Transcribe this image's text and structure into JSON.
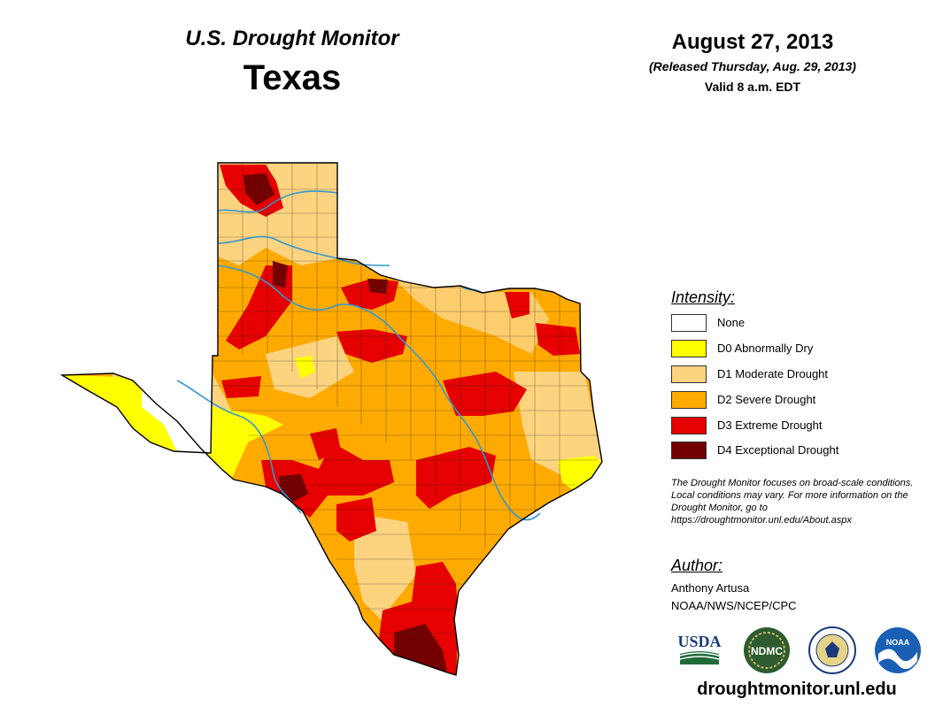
{
  "header": {
    "subtitle": "U.S. Drought Monitor",
    "title": "Texas",
    "date": "August 27, 2013",
    "released": "(Released Thursday, Aug. 29, 2013)",
    "valid": "Valid 8 a.m. EDT"
  },
  "legend": {
    "heading": "Intensity:",
    "items": [
      {
        "label": "None",
        "color": "#ffffff"
      },
      {
        "label": "D0 Abnormally Dry",
        "color": "#ffff00"
      },
      {
        "label": "D1 Moderate Drought",
        "color": "#fcd37f"
      },
      {
        "label": "D2 Severe Drought",
        "color": "#ffaa00"
      },
      {
        "label": "D3 Extreme Drought",
        "color": "#e60000"
      },
      {
        "label": "D4 Exceptional Drought",
        "color": "#730000"
      }
    ]
  },
  "note": {
    "line1": "The Drought Monitor focuses on broad-scale conditions. Local conditions may vary. For more information on the Drought Monitor, go to",
    "url": "https://droughtmonitor.unl.edu/About.aspx"
  },
  "author": {
    "heading": "Author:",
    "name": "Anthony Artusa",
    "org": "NOAA/NWS/NCEP/CPC"
  },
  "logos": {
    "usda": "USDA",
    "ndmc": "NDMC",
    "noaa": "NOAA"
  },
  "footer": {
    "website": "droughtmonitor.unl.edu"
  },
  "colors": {
    "river": "#3399cc",
    "border": "#000000"
  }
}
